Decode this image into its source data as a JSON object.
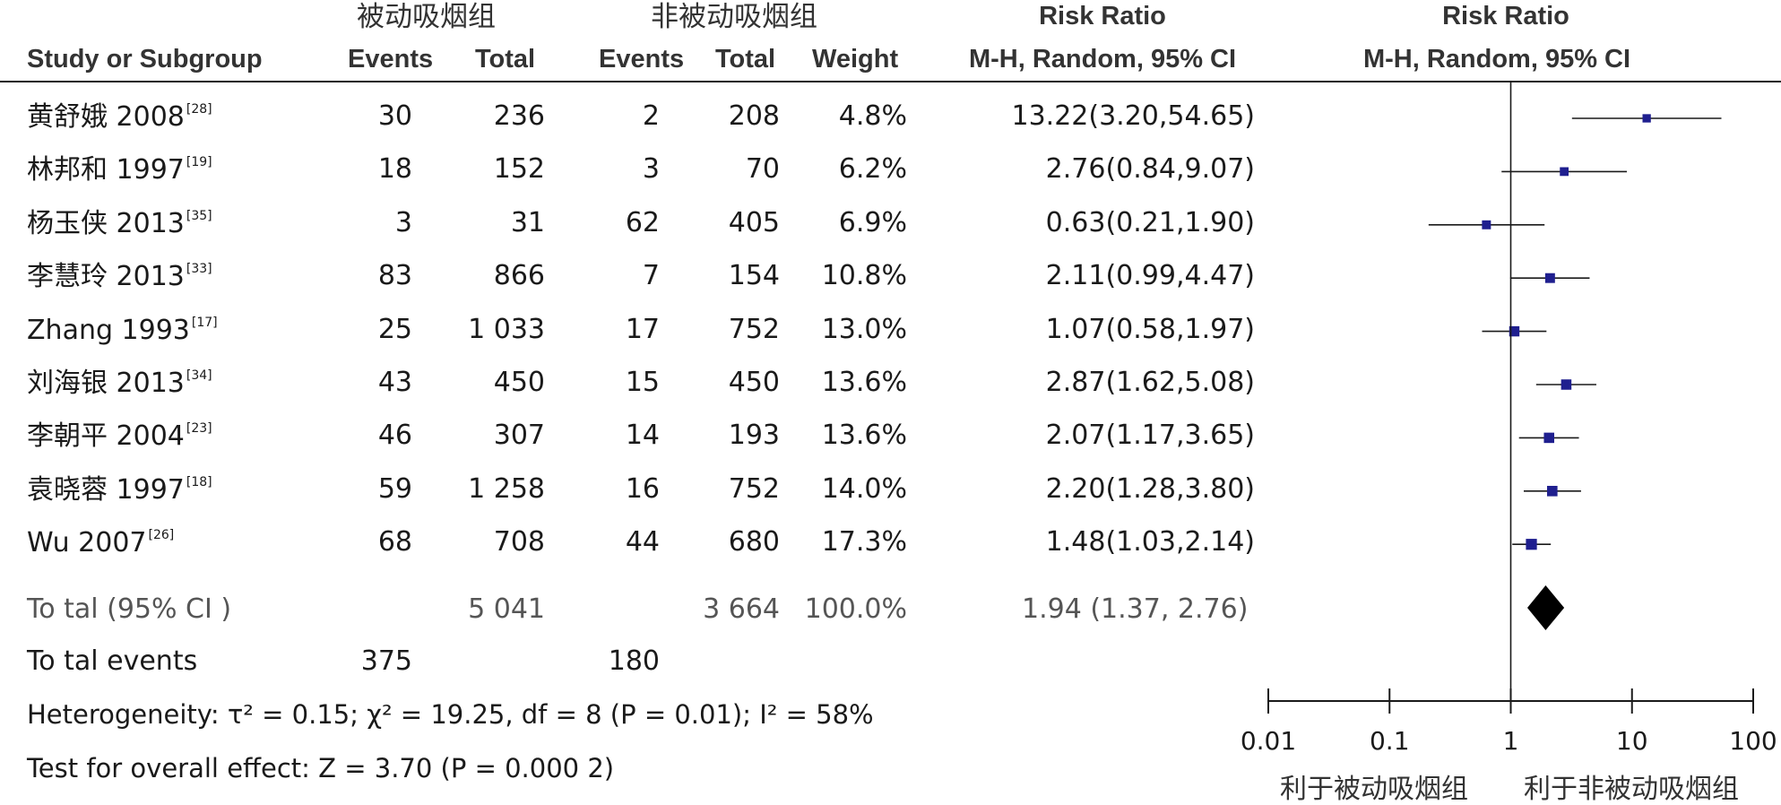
{
  "chart_data": {
    "type": "forest",
    "group_headers": {
      "experimental": "被动吸烟组",
      "control": "非被动吸烟组"
    },
    "columns": {
      "study": "Study or Subgroup",
      "events_e": "Events",
      "total_e": "Total",
      "events_c": "Events",
      "total_c": "Total",
      "weight": "Weight",
      "effect": "Risk Ratio",
      "effect_method": "M-H, Random, 95% CI",
      "plot": "Risk Ratio",
      "plot_method": "M-H, Random, 95% CI"
    },
    "studies": [
      {
        "name": "黄舒娥 2008",
        "ref": "[28]",
        "events_e": "30",
        "total_e": "236",
        "events_c": "2",
        "total_c": "208",
        "weight": "4.8%",
        "ci_text": "13.22(3.20,54.65)",
        "rr": 13.22,
        "lower": 3.2,
        "upper": 54.65,
        "w": 4.8
      },
      {
        "name": "林邦和 1997",
        "ref": "[19]",
        "events_e": "18",
        "total_e": "152",
        "events_c": "3",
        "total_c": "70",
        "weight": "6.2%",
        "ci_text": "2.76(0.84,9.07)",
        "rr": 2.76,
        "lower": 0.84,
        "upper": 9.07,
        "w": 6.2
      },
      {
        "name": "杨玉侠 2013",
        "ref": "[35]",
        "events_e": "3",
        "total_e": "31",
        "events_c": "62",
        "total_c": "405",
        "weight": "6.9%",
        "ci_text": "0.63(0.21,1.90)",
        "rr": 0.63,
        "lower": 0.21,
        "upper": 1.9,
        "w": 6.9
      },
      {
        "name": "李慧玲 2013",
        "ref": "[33]",
        "events_e": "83",
        "total_e": "866",
        "events_c": "7",
        "total_c": "154",
        "weight": "10.8%",
        "ci_text": "2.11(0.99,4.47)",
        "rr": 2.11,
        "lower": 0.99,
        "upper": 4.47,
        "w": 10.8
      },
      {
        "name": "Zhang 1993",
        "ref": "[17]",
        "events_e": "25",
        "total_e": "1 033",
        "events_c": "17",
        "total_c": "752",
        "weight": "13.0%",
        "ci_text": "1.07(0.58,1.97)",
        "rr": 1.07,
        "lower": 0.58,
        "upper": 1.97,
        "w": 13.0
      },
      {
        "name": "刘海银 2013",
        "ref": "[34]",
        "events_e": "43",
        "total_e": "450",
        "events_c": "15",
        "total_c": "450",
        "weight": "13.6%",
        "ci_text": "2.87(1.62,5.08)",
        "rr": 2.87,
        "lower": 1.62,
        "upper": 5.08,
        "w": 13.6
      },
      {
        "name": "李朝平 2004",
        "ref": "[23]",
        "events_e": "46",
        "total_e": "307",
        "events_c": "14",
        "total_c": "193",
        "weight": "13.6%",
        "ci_text": "2.07(1.17,3.65)",
        "rr": 2.07,
        "lower": 1.17,
        "upper": 3.65,
        "w": 13.6
      },
      {
        "name": "袁晓蓉 1997",
        "ref": "[18]",
        "events_e": "59",
        "total_e": "1 258",
        "events_c": "16",
        "total_c": "752",
        "weight": "14.0%",
        "ci_text": "2.20(1.28,3.80)",
        "rr": 2.2,
        "lower": 1.28,
        "upper": 3.8,
        "w": 14.0
      },
      {
        "name": "Wu 2007",
        "ref": "[26]",
        "events_e": "68",
        "total_e": "708",
        "events_c": "44",
        "total_c": "680",
        "weight": "17.3%",
        "ci_text": "1.48(1.03,2.14)",
        "rr": 1.48,
        "lower": 1.03,
        "upper": 2.14,
        "w": 17.3
      }
    ],
    "total": {
      "label": "To tal (95% CI )",
      "total_e": "5 041",
      "total_c": "3 664",
      "weight": "100.0%",
      "ci_text": "1.94 (1.37, 2.76)",
      "rr": 1.94,
      "lower": 1.37,
      "upper": 2.76
    },
    "total_events": {
      "label": "To tal events",
      "events_e": "375",
      "events_c": "180"
    },
    "heterogeneity": "Heterogeneity: τ² = 0.15; χ² = 19.25, df = 8 (P = 0.01); I² = 58%",
    "overall_effect": "Test for overall effect: Z = 3.70 (P = 0.000 2)",
    "axis": {
      "scale": "log",
      "ticks": [
        0.01,
        0.1,
        1,
        10,
        100
      ],
      "tick_labels": [
        "0.01",
        "0.1",
        "1",
        "10",
        "100"
      ],
      "xlim": [
        0.01,
        100
      ]
    },
    "favours": {
      "left": "利于被动吸烟组",
      "right": "利于非被动吸烟组"
    },
    "colors": {
      "square": "#1f1f8f",
      "line": "#1a1a1a",
      "diamond": "#000000"
    }
  }
}
